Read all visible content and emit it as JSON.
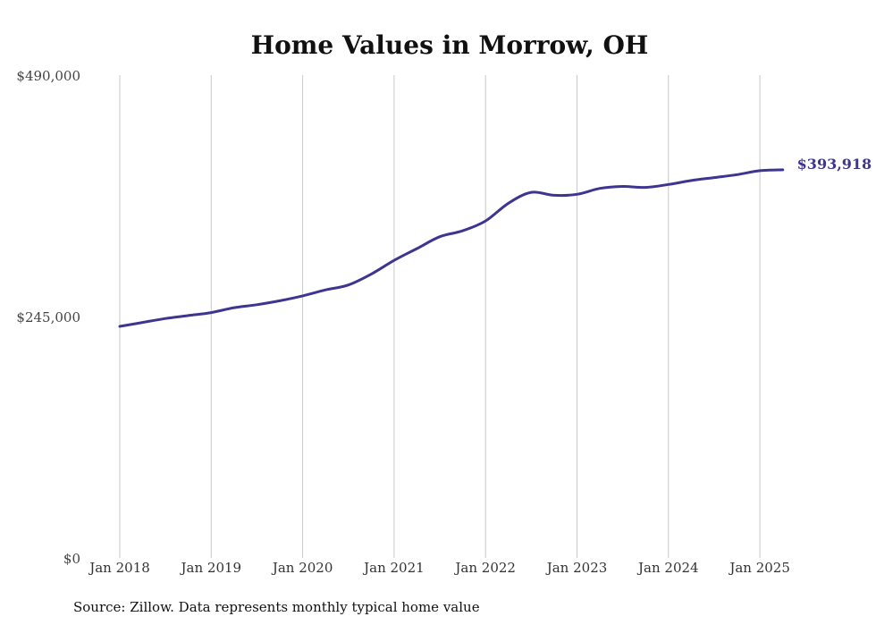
{
  "chart_data": {
    "type": "line",
    "title": "Home Values in Morrow, OH",
    "xlabel": "",
    "ylabel": "",
    "ylim": [
      0,
      490000
    ],
    "yticks": [
      "$0",
      "$245,000",
      "$490,000"
    ],
    "xticks": [
      "Jan 2018",
      "Jan 2019",
      "Jan 2020",
      "Jan 2021",
      "Jan 2022",
      "Jan 2023",
      "Jan 2024",
      "Jan 2025"
    ],
    "grid": "vertical",
    "series": [
      {
        "color": "#3d3591",
        "end_label": "$393,918",
        "points": [
          {
            "x": "2018-01",
            "y": 235000
          },
          {
            "x": "2018-04",
            "y": 239000
          },
          {
            "x": "2018-07",
            "y": 243000
          },
          {
            "x": "2018-10",
            "y": 246000
          },
          {
            "x": "2019-01",
            "y": 249000
          },
          {
            "x": "2019-04",
            "y": 254000
          },
          {
            "x": "2019-07",
            "y": 257000
          },
          {
            "x": "2019-10",
            "y": 261000
          },
          {
            "x": "2020-01",
            "y": 266000
          },
          {
            "x": "2020-04",
            "y": 272000
          },
          {
            "x": "2020-07",
            "y": 277000
          },
          {
            "x": "2020-10",
            "y": 288000
          },
          {
            "x": "2021-01",
            "y": 302000
          },
          {
            "x": "2021-04",
            "y": 314000
          },
          {
            "x": "2021-07",
            "y": 326000
          },
          {
            "x": "2021-10",
            "y": 332000
          },
          {
            "x": "2022-01",
            "y": 342000
          },
          {
            "x": "2022-04",
            "y": 360000
          },
          {
            "x": "2022-07",
            "y": 371000
          },
          {
            "x": "2022-10",
            "y": 368000
          },
          {
            "x": "2023-01",
            "y": 369000
          },
          {
            "x": "2023-04",
            "y": 375000
          },
          {
            "x": "2023-07",
            "y": 377000
          },
          {
            "x": "2023-10",
            "y": 376000
          },
          {
            "x": "2024-01",
            "y": 379000
          },
          {
            "x": "2024-04",
            "y": 383000
          },
          {
            "x": "2024-07",
            "y": 386000
          },
          {
            "x": "2024-10",
            "y": 389000
          },
          {
            "x": "2025-01",
            "y": 393000
          },
          {
            "x": "2025-04",
            "y": 393918
          }
        ]
      }
    ]
  },
  "source_note": "Source: Zillow. Data represents monthly typical home value"
}
